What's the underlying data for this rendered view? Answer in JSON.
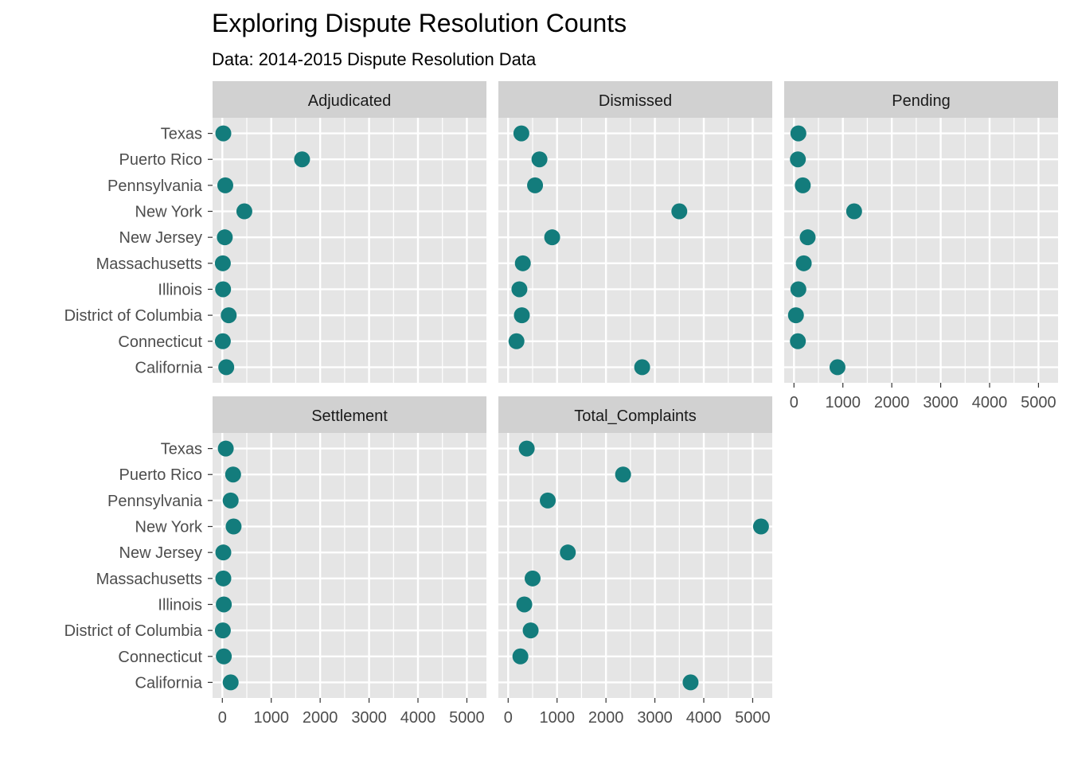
{
  "chart_data": {
    "type": "scatter",
    "title": "Exploring Dispute Resolution Counts",
    "subtitle": "Data: 2014-2015 Dispute Resolution Data",
    "xlabel": "",
    "ylabel": "",
    "xlim": [
      -200,
      5400
    ],
    "x_ticks": [
      0,
      1000,
      2000,
      3000,
      4000,
      5000
    ],
    "grid": true,
    "point_color": "#137C7C",
    "panel_background": "#E5E5E5",
    "strip_background": "#D1D1D1",
    "categories": [
      "California",
      "Connecticut",
      "District of Columbia",
      "Illinois",
      "Massachusetts",
      "New Jersey",
      "New York",
      "Pennsylvania",
      "Puerto Rico",
      "Texas"
    ],
    "facets": [
      {
        "name": "Adjudicated",
        "values": [
          80,
          10,
          130,
          15,
          10,
          50,
          450,
          60,
          1630,
          20
        ]
      },
      {
        "name": "Dismissed",
        "values": [
          2740,
          170,
          280,
          230,
          300,
          900,
          3500,
          550,
          640,
          270
        ]
      },
      {
        "name": "Pending",
        "values": [
          890,
          80,
          40,
          90,
          200,
          280,
          1230,
          180,
          80,
          90
        ]
      },
      {
        "name": "Settlement",
        "values": [
          170,
          30,
          10,
          30,
          20,
          20,
          230,
          170,
          220,
          70
        ]
      },
      {
        "name": "Total_Complaints",
        "values": [
          3730,
          250,
          460,
          330,
          500,
          1220,
          5170,
          810,
          2350,
          380
        ]
      }
    ]
  }
}
